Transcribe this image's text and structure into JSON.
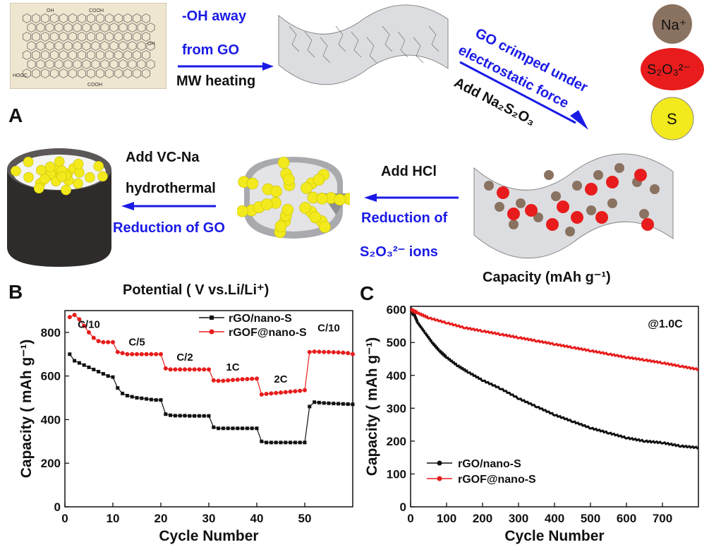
{
  "panel_labels": {
    "a": "A",
    "b": "B",
    "c": "C"
  },
  "schematic": {
    "step1_line1": "-OH away",
    "step1_line2": "from GO",
    "step1_line3": "MW heating",
    "step2_line1": "GO crimped under",
    "step2_line2": "electrostatic force",
    "step2_line3": "Add Na₂S₂O₃",
    "step3_line1": "Add HCl",
    "step3_line2": "Reduction of",
    "step3_line3": "S₂O₃²⁻  ions",
    "step4_line1": "Add VC-Na",
    "step4_line2": "hydrothermal",
    "step4_line3": "Reduction of GO",
    "legend_na": "Na⁺",
    "legend_s2o3": "S₂O₃²⁻",
    "legend_s": "S",
    "na_label": "Na",
    "so_label": "S₂O",
    "go_func_groups": [
      "OH",
      "COOH",
      "HOOC",
      "OH",
      "COOH"
    ],
    "colors": {
      "blue": "#1a1ae6",
      "na": "#8a7260",
      "s2o3": "#e81c1c",
      "s": "#f2ea1c",
      "sheet": "#dcdde0"
    }
  },
  "floating_labels": {
    "capacity_top": "Capacity (mAh g⁻¹)",
    "potential_top": "Potential ( V vs.Li/Li⁺)"
  },
  "chart_data": [
    {
      "type": "line",
      "panel": "B",
      "xlabel": "Cycle Number",
      "ylabel": "Capacity ( mAh g⁻¹)",
      "xlim": [
        0,
        60
      ],
      "ylim": [
        0,
        900
      ],
      "xticks": [
        0,
        10,
        20,
        30,
        40,
        50
      ],
      "yticks": [
        0,
        200,
        400,
        600,
        800
      ],
      "legend": "top-right",
      "rate_labels": [
        {
          "text": "C/10",
          "x": 5,
          "y": 820
        },
        {
          "text": "C/5",
          "x": 15,
          "y": 740
        },
        {
          "text": "C/2",
          "x": 25,
          "y": 670
        },
        {
          "text": "1C",
          "x": 35,
          "y": 625
        },
        {
          "text": "2C",
          "x": 45,
          "y": 570
        },
        {
          "text": "C/10",
          "x": 55,
          "y": 805
        }
      ],
      "series": [
        {
          "name": "rGO/nano-S",
          "color": "#111111",
          "marker": "square",
          "values": [
            700,
            670,
            660,
            650,
            640,
            630,
            620,
            610,
            600,
            595,
            545,
            520,
            510,
            505,
            500,
            498,
            495,
            492,
            490,
            490,
            425,
            420,
            418,
            418,
            418,
            417,
            417,
            417,
            417,
            417,
            365,
            360,
            360,
            360,
            360,
            360,
            360,
            360,
            360,
            360,
            300,
            295,
            295,
            295,
            295,
            295,
            295,
            295,
            295,
            295,
            460,
            480,
            478,
            476,
            475,
            474,
            473,
            472,
            471,
            470
          ]
        },
        {
          "name": "rGOF@nano-S",
          "color": "#e81c1c",
          "marker": "circle",
          "values": [
            870,
            880,
            860,
            830,
            800,
            775,
            760,
            755,
            755,
            755,
            710,
            705,
            700,
            700,
            700,
            700,
            700,
            700,
            700,
            700,
            635,
            630,
            630,
            630,
            630,
            630,
            630,
            630,
            630,
            630,
            580,
            578,
            578,
            580,
            582,
            583,
            585,
            586,
            587,
            588,
            515,
            518,
            520,
            522,
            524,
            526,
            528,
            530,
            532,
            535,
            710,
            712,
            711,
            710,
            710,
            709,
            708,
            707,
            705,
            700
          ]
        }
      ]
    },
    {
      "type": "line",
      "panel": "C",
      "xlabel": "Cycle Number",
      "ylabel": "Capacity ( mAh g⁻¹)",
      "annotation": "@1.0C",
      "xlim": [
        0,
        800
      ],
      "ylim": [
        0,
        610
      ],
      "xticks": [
        0,
        100,
        200,
        300,
        400,
        500,
        600,
        700
      ],
      "yticks": [
        0,
        100,
        200,
        300,
        400,
        500,
        600
      ],
      "legend": "bottom-left",
      "series": [
        {
          "name": "rGO/nano-S",
          "color": "#111111",
          "x": [
            0,
            10,
            20,
            40,
            60,
            80,
            100,
            130,
            160,
            200,
            250,
            300,
            350,
            400,
            450,
            500,
            550,
            600,
            650,
            700,
            750,
            800
          ],
          "y": [
            600,
            585,
            560,
            530,
            500,
            475,
            455,
            430,
            410,
            385,
            360,
            330,
            305,
            280,
            260,
            240,
            225,
            210,
            200,
            195,
            185,
            180
          ]
        },
        {
          "name": "rGOF@nano-S",
          "color": "#e81c1c",
          "x": [
            0,
            20,
            50,
            100,
            150,
            200,
            250,
            300,
            350,
            400,
            450,
            500,
            550,
            600,
            650,
            700,
            750,
            800
          ],
          "y": [
            600,
            590,
            575,
            560,
            545,
            535,
            525,
            515,
            505,
            495,
            485,
            475,
            465,
            455,
            447,
            438,
            428,
            418
          ]
        }
      ]
    }
  ]
}
